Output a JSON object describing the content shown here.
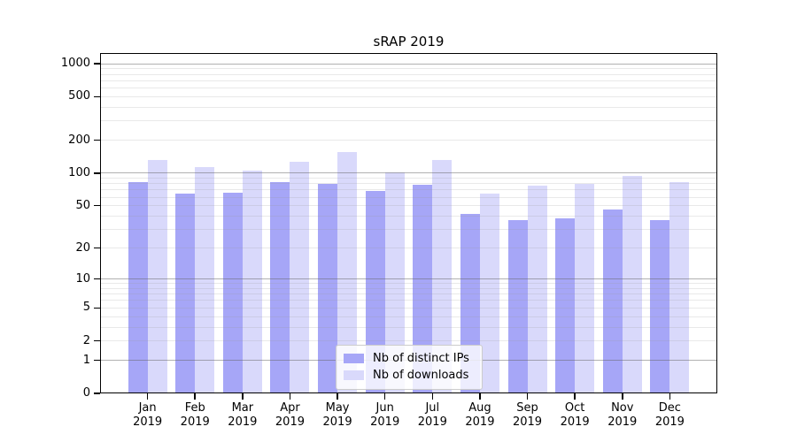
{
  "chart_data": {
    "type": "bar",
    "title": "sRAP 2019",
    "categories": [
      "Jan",
      "Feb",
      "Mar",
      "Apr",
      "May",
      "Jun",
      "Jul",
      "Aug",
      "Sep",
      "Oct",
      "Nov",
      "Dec"
    ],
    "category_year": "2019",
    "series": [
      {
        "name": "Nb of distinct IPs",
        "color": "#a6a6f7",
        "values": [
          83,
          65,
          66,
          83,
          80,
          69,
          78,
          42,
          37,
          38,
          46,
          37
        ]
      },
      {
        "name": "Nb of downloads",
        "color": "#d9d9fb",
        "values": [
          132,
          114,
          106,
          127,
          156,
          102,
          132,
          65,
          77,
          80,
          94,
          83
        ]
      }
    ],
    "xlabel": "",
    "ylabel": "",
    "yscale": "log1p",
    "ylim": [
      0,
      1250
    ],
    "yticks": [
      0,
      1,
      2,
      5,
      10,
      20,
      50,
      100,
      200,
      500,
      1000
    ],
    "major_grid_values": [
      1,
      10,
      100,
      1000
    ],
    "grid": true,
    "legend_position": "lower center"
  },
  "colors": {
    "background": "#ffffff",
    "spine": "#000000",
    "major_gridline": "#b0b0b0",
    "minor_gridline": "#e9e9e9",
    "tick_text": "#000000"
  }
}
